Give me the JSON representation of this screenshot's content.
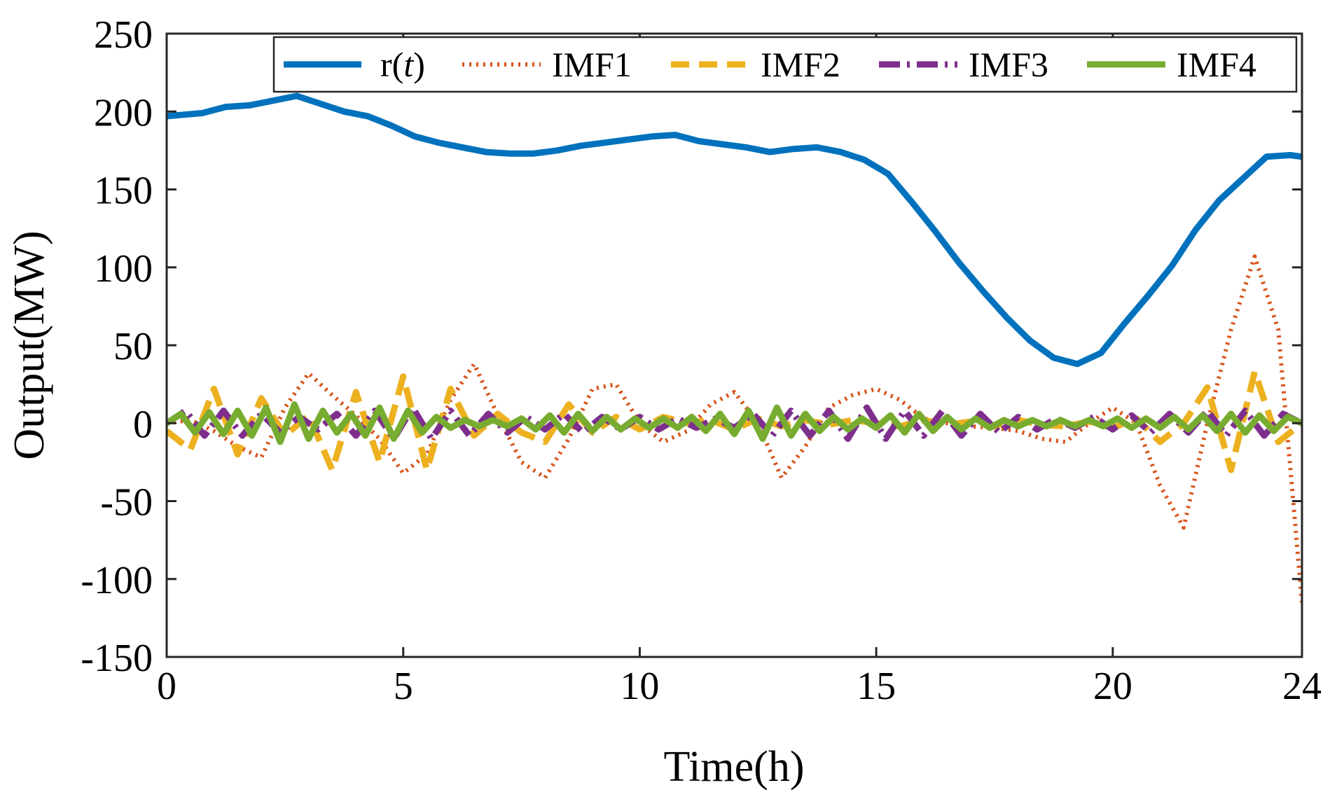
{
  "chart_data": {
    "type": "line",
    "xlabel": "Time(h)",
    "ylabel": "Output(MW)",
    "xlim": [
      0,
      24
    ],
    "ylim": [
      -150,
      250
    ],
    "xticks": [
      0,
      5,
      10,
      15,
      20,
      24
    ],
    "xtick_labels": [
      "0",
      "5",
      "10",
      "15",
      "20",
      "24"
    ],
    "yticks": [
      250,
      200,
      150,
      100,
      50,
      0,
      -50,
      -100,
      -150
    ],
    "ytick_labels": [
      "250",
      "200",
      "150",
      "100",
      "50",
      "0",
      "-50",
      "-100",
      "-150"
    ],
    "grid": false,
    "legend_position": "top-right",
    "series": [
      {
        "name": "r(t)",
        "name_main": "r(",
        "name_italic": "t",
        "name_close": ")",
        "color": "#0072BD",
        "style": "solid",
        "x": [
          0,
          0.75,
          1.25,
          1.75,
          2.25,
          2.75,
          3.25,
          3.75,
          4.25,
          4.75,
          5.25,
          5.75,
          6.25,
          6.75,
          7.25,
          7.75,
          8.25,
          8.75,
          9.25,
          9.75,
          10.25,
          10.75,
          11.25,
          11.75,
          12.25,
          12.75,
          13.25,
          13.75,
          14.25,
          14.75,
          15.25,
          15.75,
          16.25,
          16.75,
          17.25,
          17.75,
          18.25,
          18.75,
          19.25,
          19.75,
          20.25,
          20.75,
          21.25,
          21.75,
          22.25,
          22.75,
          23.25,
          23.75,
          24
        ],
        "y": [
          197,
          199,
          203,
          204,
          207,
          210,
          205,
          200,
          197,
          191,
          184,
          180,
          177,
          174,
          173,
          173,
          175,
          178,
          180,
          182,
          184,
          185,
          181,
          179,
          177,
          174,
          176,
          177,
          174,
          169,
          160,
          142,
          123,
          103,
          85,
          68,
          53,
          42,
          38,
          45,
          64,
          82,
          101,
          124,
          143,
          157,
          171,
          172,
          171
        ]
      },
      {
        "name": "IMF1",
        "color": "#D95319",
        "style": "dotted",
        "x": [
          0,
          0.5,
          1,
          1.5,
          2,
          2.5,
          3,
          3.5,
          4,
          4.5,
          5,
          5.5,
          6,
          6.5,
          7,
          7.5,
          8,
          8.5,
          9,
          9.5,
          10,
          10.5,
          11,
          11.5,
          12,
          12.5,
          13,
          13.5,
          14,
          14.5,
          15,
          15.5,
          16,
          16.5,
          17,
          17.5,
          18,
          18.5,
          19,
          19.5,
          20,
          20.5,
          21,
          21.5,
          22,
          22.5,
          23,
          23.5,
          24
        ],
        "y": [
          0,
          2,
          -5,
          -15,
          -22,
          10,
          32,
          18,
          5,
          -10,
          -32,
          -20,
          15,
          38,
          5,
          -25,
          -35,
          -10,
          22,
          25,
          0,
          -12,
          -5,
          12,
          20,
          0,
          -35,
          -15,
          10,
          18,
          22,
          15,
          3,
          0,
          -2,
          -3,
          -5,
          -10,
          -12,
          0,
          10,
          0,
          -40,
          -67,
          0,
          60,
          107,
          60,
          -115
        ]
      },
      {
        "name": "IMF2",
        "color": "#EDB120",
        "style": "dashed",
        "x": [
          0,
          0.5,
          1,
          1.5,
          2,
          2.5,
          3,
          3.5,
          4,
          4.5,
          5,
          5.5,
          6,
          6.5,
          7,
          7.5,
          8,
          8.5,
          9,
          9.5,
          10,
          10.5,
          11,
          11.5,
          12,
          12.5,
          13,
          13.5,
          14,
          14.5,
          15,
          15.5,
          16,
          16.5,
          17,
          17.5,
          18,
          18.5,
          19,
          19.5,
          20,
          20.5,
          21,
          21.5,
          22,
          22.5,
          23,
          23.5,
          24
        ],
        "y": [
          -5,
          -17,
          22,
          -20,
          16,
          -8,
          5,
          -30,
          20,
          -25,
          30,
          -30,
          22,
          -8,
          6,
          -6,
          -12,
          12,
          -6,
          4,
          -4,
          4,
          0,
          2,
          -4,
          3,
          -2,
          2,
          -1,
          2,
          0,
          -2,
          2,
          -1,
          1,
          -2,
          2,
          -1,
          -2,
          1,
          -3,
          3,
          -12,
          0,
          23,
          -30,
          33,
          -12,
          0
        ]
      },
      {
        "name": "IMF3",
        "color": "#7E2F8E",
        "style": "dashdot",
        "x": [
          0,
          0.4,
          0.8,
          1.2,
          1.6,
          2,
          2.4,
          2.8,
          3.2,
          3.6,
          4,
          4.4,
          4.8,
          5.2,
          5.6,
          6,
          6.4,
          6.8,
          7.2,
          7.6,
          8,
          8.4,
          8.8,
          9.2,
          9.6,
          10,
          10.4,
          10.8,
          11.2,
          11.6,
          12,
          12.4,
          12.8,
          13.2,
          13.6,
          14,
          14.4,
          14.8,
          15.2,
          15.6,
          16,
          16.4,
          16.8,
          17.2,
          17.6,
          18,
          18.4,
          18.8,
          19.2,
          19.6,
          20,
          20.4,
          20.8,
          21.2,
          21.6,
          22,
          22.4,
          22.8,
          23.2,
          23.6,
          24
        ],
        "y": [
          0,
          8,
          -8,
          8,
          -8,
          6,
          -6,
          4,
          -4,
          6,
          -8,
          8,
          -10,
          10,
          -10,
          8,
          -8,
          6,
          -6,
          4,
          -4,
          6,
          -6,
          4,
          -4,
          4,
          -4,
          3,
          -3,
          3,
          -3,
          6,
          -8,
          8,
          -8,
          8,
          -10,
          10,
          -10,
          8,
          -8,
          8,
          -8,
          6,
          -6,
          4,
          -4,
          3,
          -3,
          4,
          -4,
          5,
          -6,
          6,
          -6,
          8,
          -8,
          8,
          -8,
          6,
          0
        ]
      },
      {
        "name": "IMF4",
        "color": "#77AC30",
        "style": "solid",
        "x": [
          0,
          0.3,
          0.6,
          0.9,
          1.2,
          1.5,
          1.8,
          2.1,
          2.4,
          2.7,
          3,
          3.3,
          3.6,
          3.9,
          4.2,
          4.5,
          4.8,
          5.1,
          5.4,
          5.7,
          6,
          6.3,
          6.6,
          6.9,
          7.2,
          7.5,
          7.8,
          8.1,
          8.4,
          8.7,
          9,
          9.3,
          9.6,
          9.9,
          10.2,
          10.5,
          10.8,
          11.1,
          11.4,
          11.7,
          12,
          12.3,
          12.6,
          12.9,
          13.2,
          13.5,
          13.8,
          14.1,
          14.4,
          14.7,
          15,
          15.3,
          15.6,
          15.9,
          16.2,
          16.5,
          16.8,
          17.1,
          17.4,
          17.7,
          18,
          18.3,
          18.6,
          18.9,
          19.2,
          19.5,
          19.8,
          20.1,
          20.4,
          20.7,
          21,
          21.3,
          21.6,
          21.9,
          22.2,
          22.5,
          22.8,
          23.1,
          23.4,
          23.7,
          24
        ],
        "y": [
          0,
          6,
          -6,
          7,
          -7,
          8,
          -8,
          10,
          -12,
          12,
          -10,
          8,
          -6,
          6,
          -8,
          10,
          -10,
          8,
          -6,
          4,
          -3,
          2,
          -2,
          2,
          -2,
          3,
          -4,
          5,
          -6,
          6,
          -5,
          4,
          -4,
          3,
          -3,
          3,
          -3,
          4,
          -5,
          6,
          -7,
          8,
          -10,
          10,
          -8,
          6,
          -5,
          4,
          -4,
          3,
          -3,
          5,
          -6,
          6,
          -5,
          4,
          -4,
          3,
          -3,
          2,
          -2,
          2,
          -2,
          2,
          -2,
          2,
          -2,
          3,
          -3,
          3,
          -3,
          4,
          -4,
          5,
          -5,
          6,
          -6,
          5,
          -5,
          4,
          0
        ]
      }
    ]
  }
}
